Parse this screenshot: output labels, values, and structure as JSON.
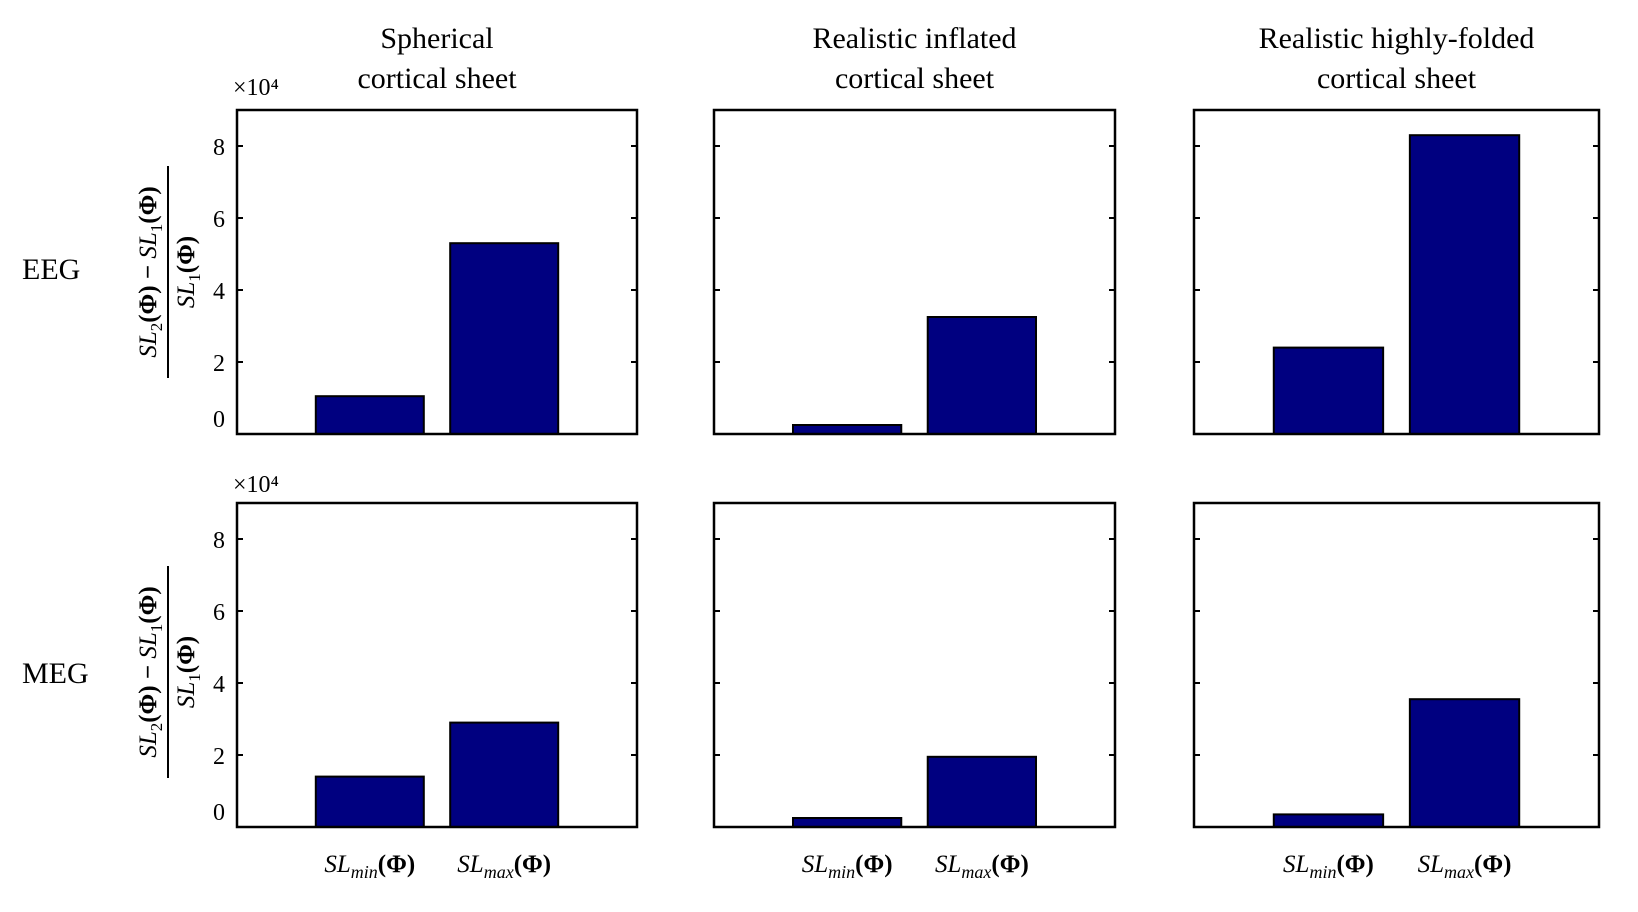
{
  "panel_titles": [
    [
      "Spherical",
      "cortical sheet"
    ],
    [
      "Realistic inflated",
      "cortical sheet"
    ],
    [
      "Realistic highly-folded",
      "cortical sheet"
    ]
  ],
  "row_labels": [
    "EEG",
    "MEG"
  ],
  "exponent_label": "×10⁴",
  "y_tick_labels": [
    "0",
    "2",
    "4",
    "6",
    "8"
  ],
  "y_axis_label": {
    "numerator": "SL2(Φ) − SL1(Φ)",
    "denominator": "SL1(Φ)"
  },
  "category_labels": [
    "SLmin(Φ)",
    "SLmax(Φ)"
  ],
  "colors": {
    "bar": "#000080",
    "axis": "#000000"
  },
  "chart_data": [
    {
      "type": "bar",
      "row": "EEG",
      "title": "Spherical cortical sheet",
      "categories": [
        "SLmin(Φ)",
        "SLmax(Φ)"
      ],
      "values": [
        10500,
        53000
      ],
      "ylim": [
        0,
        90000
      ],
      "ylabel": "(SL2(Φ) − SL1(Φ)) / SL1(Φ)",
      "scale_label": "×10⁴",
      "grid": false
    },
    {
      "type": "bar",
      "row": "EEG",
      "title": "Realistic inflated cortical sheet",
      "categories": [
        "SLmin(Φ)",
        "SLmax(Φ)"
      ],
      "values": [
        2500,
        32500
      ],
      "ylim": [
        0,
        90000
      ],
      "grid": false
    },
    {
      "type": "bar",
      "row": "EEG",
      "title": "Realistic highly-folded cortical sheet",
      "categories": [
        "SLmin(Φ)",
        "SLmax(Φ)"
      ],
      "values": [
        24000,
        83000
      ],
      "ylim": [
        0,
        90000
      ],
      "grid": false
    },
    {
      "type": "bar",
      "row": "MEG",
      "title": "Spherical cortical sheet",
      "categories": [
        "SLmin(Φ)",
        "SLmax(Φ)"
      ],
      "values": [
        14000,
        29000
      ],
      "ylim": [
        0,
        90000
      ],
      "ylabel": "(SL2(Φ) − SL1(Φ)) / SL1(Φ)",
      "scale_label": "×10⁴",
      "grid": false
    },
    {
      "type": "bar",
      "row": "MEG",
      "title": "Realistic inflated cortical sheet",
      "categories": [
        "SLmin(Φ)",
        "SLmax(Φ)"
      ],
      "values": [
        2500,
        19500
      ],
      "ylim": [
        0,
        90000
      ],
      "grid": false
    },
    {
      "type": "bar",
      "row": "MEG",
      "title": "Realistic highly-folded cortical sheet",
      "categories": [
        "SLmin(Φ)",
        "SLmax(Φ)"
      ],
      "values": [
        3500,
        35500
      ],
      "ylim": [
        0,
        90000
      ],
      "grid": false
    }
  ]
}
